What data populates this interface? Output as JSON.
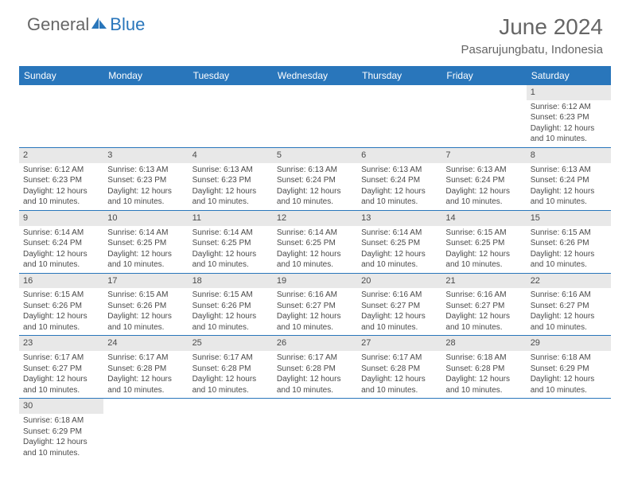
{
  "logo": {
    "text_general": "General",
    "text_blue": "Blue"
  },
  "header": {
    "month_title": "June 2024",
    "location": "Pasarujungbatu, Indonesia"
  },
  "colors": {
    "header_bg": "#2976bb",
    "header_text": "#ffffff",
    "day_num_bg": "#e8e8e8",
    "text": "#4a4a4a",
    "border": "#2976bb"
  },
  "day_names": [
    "Sunday",
    "Monday",
    "Tuesday",
    "Wednesday",
    "Thursday",
    "Friday",
    "Saturday"
  ],
  "weeks": [
    [
      {
        "num": "",
        "sunrise": "",
        "sunset": "",
        "daylight": ""
      },
      {
        "num": "",
        "sunrise": "",
        "sunset": "",
        "daylight": ""
      },
      {
        "num": "",
        "sunrise": "",
        "sunset": "",
        "daylight": ""
      },
      {
        "num": "",
        "sunrise": "",
        "sunset": "",
        "daylight": ""
      },
      {
        "num": "",
        "sunrise": "",
        "sunset": "",
        "daylight": ""
      },
      {
        "num": "",
        "sunrise": "",
        "sunset": "",
        "daylight": ""
      },
      {
        "num": "1",
        "sunrise": "Sunrise: 6:12 AM",
        "sunset": "Sunset: 6:23 PM",
        "daylight": "Daylight: 12 hours and 10 minutes."
      }
    ],
    [
      {
        "num": "2",
        "sunrise": "Sunrise: 6:12 AM",
        "sunset": "Sunset: 6:23 PM",
        "daylight": "Daylight: 12 hours and 10 minutes."
      },
      {
        "num": "3",
        "sunrise": "Sunrise: 6:13 AM",
        "sunset": "Sunset: 6:23 PM",
        "daylight": "Daylight: 12 hours and 10 minutes."
      },
      {
        "num": "4",
        "sunrise": "Sunrise: 6:13 AM",
        "sunset": "Sunset: 6:23 PM",
        "daylight": "Daylight: 12 hours and 10 minutes."
      },
      {
        "num": "5",
        "sunrise": "Sunrise: 6:13 AM",
        "sunset": "Sunset: 6:24 PM",
        "daylight": "Daylight: 12 hours and 10 minutes."
      },
      {
        "num": "6",
        "sunrise": "Sunrise: 6:13 AM",
        "sunset": "Sunset: 6:24 PM",
        "daylight": "Daylight: 12 hours and 10 minutes."
      },
      {
        "num": "7",
        "sunrise": "Sunrise: 6:13 AM",
        "sunset": "Sunset: 6:24 PM",
        "daylight": "Daylight: 12 hours and 10 minutes."
      },
      {
        "num": "8",
        "sunrise": "Sunrise: 6:13 AM",
        "sunset": "Sunset: 6:24 PM",
        "daylight": "Daylight: 12 hours and 10 minutes."
      }
    ],
    [
      {
        "num": "9",
        "sunrise": "Sunrise: 6:14 AM",
        "sunset": "Sunset: 6:24 PM",
        "daylight": "Daylight: 12 hours and 10 minutes."
      },
      {
        "num": "10",
        "sunrise": "Sunrise: 6:14 AM",
        "sunset": "Sunset: 6:25 PM",
        "daylight": "Daylight: 12 hours and 10 minutes."
      },
      {
        "num": "11",
        "sunrise": "Sunrise: 6:14 AM",
        "sunset": "Sunset: 6:25 PM",
        "daylight": "Daylight: 12 hours and 10 minutes."
      },
      {
        "num": "12",
        "sunrise": "Sunrise: 6:14 AM",
        "sunset": "Sunset: 6:25 PM",
        "daylight": "Daylight: 12 hours and 10 minutes."
      },
      {
        "num": "13",
        "sunrise": "Sunrise: 6:14 AM",
        "sunset": "Sunset: 6:25 PM",
        "daylight": "Daylight: 12 hours and 10 minutes."
      },
      {
        "num": "14",
        "sunrise": "Sunrise: 6:15 AM",
        "sunset": "Sunset: 6:25 PM",
        "daylight": "Daylight: 12 hours and 10 minutes."
      },
      {
        "num": "15",
        "sunrise": "Sunrise: 6:15 AM",
        "sunset": "Sunset: 6:26 PM",
        "daylight": "Daylight: 12 hours and 10 minutes."
      }
    ],
    [
      {
        "num": "16",
        "sunrise": "Sunrise: 6:15 AM",
        "sunset": "Sunset: 6:26 PM",
        "daylight": "Daylight: 12 hours and 10 minutes."
      },
      {
        "num": "17",
        "sunrise": "Sunrise: 6:15 AM",
        "sunset": "Sunset: 6:26 PM",
        "daylight": "Daylight: 12 hours and 10 minutes."
      },
      {
        "num": "18",
        "sunrise": "Sunrise: 6:15 AM",
        "sunset": "Sunset: 6:26 PM",
        "daylight": "Daylight: 12 hours and 10 minutes."
      },
      {
        "num": "19",
        "sunrise": "Sunrise: 6:16 AM",
        "sunset": "Sunset: 6:27 PM",
        "daylight": "Daylight: 12 hours and 10 minutes."
      },
      {
        "num": "20",
        "sunrise": "Sunrise: 6:16 AM",
        "sunset": "Sunset: 6:27 PM",
        "daylight": "Daylight: 12 hours and 10 minutes."
      },
      {
        "num": "21",
        "sunrise": "Sunrise: 6:16 AM",
        "sunset": "Sunset: 6:27 PM",
        "daylight": "Daylight: 12 hours and 10 minutes."
      },
      {
        "num": "22",
        "sunrise": "Sunrise: 6:16 AM",
        "sunset": "Sunset: 6:27 PM",
        "daylight": "Daylight: 12 hours and 10 minutes."
      }
    ],
    [
      {
        "num": "23",
        "sunrise": "Sunrise: 6:17 AM",
        "sunset": "Sunset: 6:27 PM",
        "daylight": "Daylight: 12 hours and 10 minutes."
      },
      {
        "num": "24",
        "sunrise": "Sunrise: 6:17 AM",
        "sunset": "Sunset: 6:28 PM",
        "daylight": "Daylight: 12 hours and 10 minutes."
      },
      {
        "num": "25",
        "sunrise": "Sunrise: 6:17 AM",
        "sunset": "Sunset: 6:28 PM",
        "daylight": "Daylight: 12 hours and 10 minutes."
      },
      {
        "num": "26",
        "sunrise": "Sunrise: 6:17 AM",
        "sunset": "Sunset: 6:28 PM",
        "daylight": "Daylight: 12 hours and 10 minutes."
      },
      {
        "num": "27",
        "sunrise": "Sunrise: 6:17 AM",
        "sunset": "Sunset: 6:28 PM",
        "daylight": "Daylight: 12 hours and 10 minutes."
      },
      {
        "num": "28",
        "sunrise": "Sunrise: 6:18 AM",
        "sunset": "Sunset: 6:28 PM",
        "daylight": "Daylight: 12 hours and 10 minutes."
      },
      {
        "num": "29",
        "sunrise": "Sunrise: 6:18 AM",
        "sunset": "Sunset: 6:29 PM",
        "daylight": "Daylight: 12 hours and 10 minutes."
      }
    ],
    [
      {
        "num": "30",
        "sunrise": "Sunrise: 6:18 AM",
        "sunset": "Sunset: 6:29 PM",
        "daylight": "Daylight: 12 hours and 10 minutes."
      },
      {
        "num": "",
        "sunrise": "",
        "sunset": "",
        "daylight": ""
      },
      {
        "num": "",
        "sunrise": "",
        "sunset": "",
        "daylight": ""
      },
      {
        "num": "",
        "sunrise": "",
        "sunset": "",
        "daylight": ""
      },
      {
        "num": "",
        "sunrise": "",
        "sunset": "",
        "daylight": ""
      },
      {
        "num": "",
        "sunrise": "",
        "sunset": "",
        "daylight": ""
      },
      {
        "num": "",
        "sunrise": "",
        "sunset": "",
        "daylight": ""
      }
    ]
  ]
}
